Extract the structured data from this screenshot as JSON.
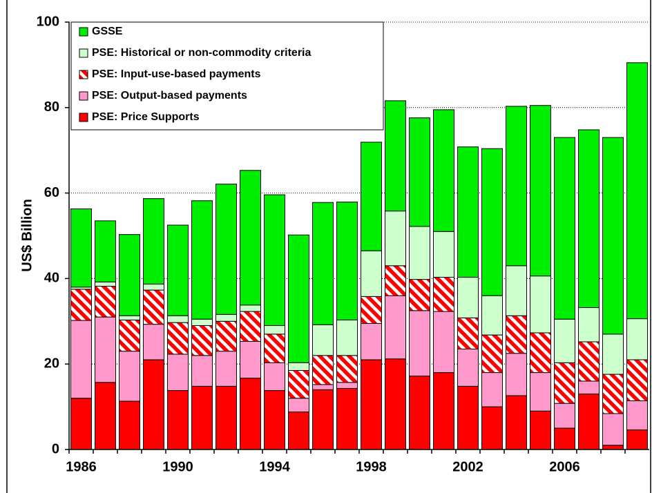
{
  "chart_data": {
    "type": "stacked_bar",
    "y_label": "US$ Billion",
    "categories": [
      "1986",
      null,
      null,
      null,
      "1990",
      null,
      null,
      null,
      "1994",
      null,
      null,
      null,
      "1998",
      null,
      null,
      null,
      "2002",
      null,
      null,
      null,
      "2006",
      null,
      null,
      null
    ],
    "ylim": [
      0,
      100
    ],
    "yticks": [
      0,
      20,
      40,
      60,
      80,
      100
    ],
    "grid": true,
    "legend": "upper left",
    "series": [
      {
        "name": "PSE: Price Supports",
        "color": "#ff0000",
        "values": [
          12,
          15.7,
          11.3,
          21,
          13.8,
          14.8,
          14.8,
          16.7,
          13.8,
          8.8,
          14,
          14.3,
          21,
          21.2,
          17.2,
          18,
          14.8,
          10,
          12.6,
          9,
          5,
          13,
          1,
          4.6
        ]
      },
      {
        "name": "PSE: Output-based payments",
        "color": "#ff99cc",
        "values": [
          18.2,
          15.3,
          11.7,
          8.3,
          8.5,
          7.2,
          8.2,
          8.6,
          6.5,
          3.2,
          1.2,
          1.4,
          8.5,
          14.8,
          15.3,
          14.3,
          8.7,
          8,
          9.9,
          9,
          5.8,
          3,
          7.4,
          6.8
        ]
      },
      {
        "name": "PSE: Input-use-based payments",
        "color": "#ff0000",
        "hatch": true,
        "values": [
          7.3,
          7.2,
          7.3,
          8,
          7.4,
          7,
          7,
          7,
          6.7,
          6.5,
          6.8,
          6.3,
          6.3,
          7,
          7.3,
          8,
          7.3,
          8.8,
          8.8,
          9.3,
          9.5,
          9.2,
          9.2,
          9.6
        ]
      },
      {
        "name": "PSE: Historical or non-commodity criteria",
        "color": "#ccffcc",
        "values": [
          0.5,
          1,
          1,
          1.4,
          1.6,
          1.5,
          1.6,
          1.5,
          2,
          1.8,
          7.2,
          8.3,
          10.7,
          12.8,
          12.4,
          10.7,
          9.5,
          9.2,
          11.7,
          13.3,
          10.2,
          8,
          9.4,
          9.6
        ]
      },
      {
        "name": "GSSE",
        "color": "#00ee00",
        "values": [
          18.3,
          14.3,
          19,
          20,
          21.2,
          27.7,
          30.5,
          31.5,
          30.6,
          29.9,
          28.6,
          27.6,
          25.4,
          25.8,
          25.4,
          28.5,
          30.5,
          34.4,
          37.3,
          39.9,
          42.5,
          41.6,
          46,
          59.9
        ]
      }
    ]
  }
}
